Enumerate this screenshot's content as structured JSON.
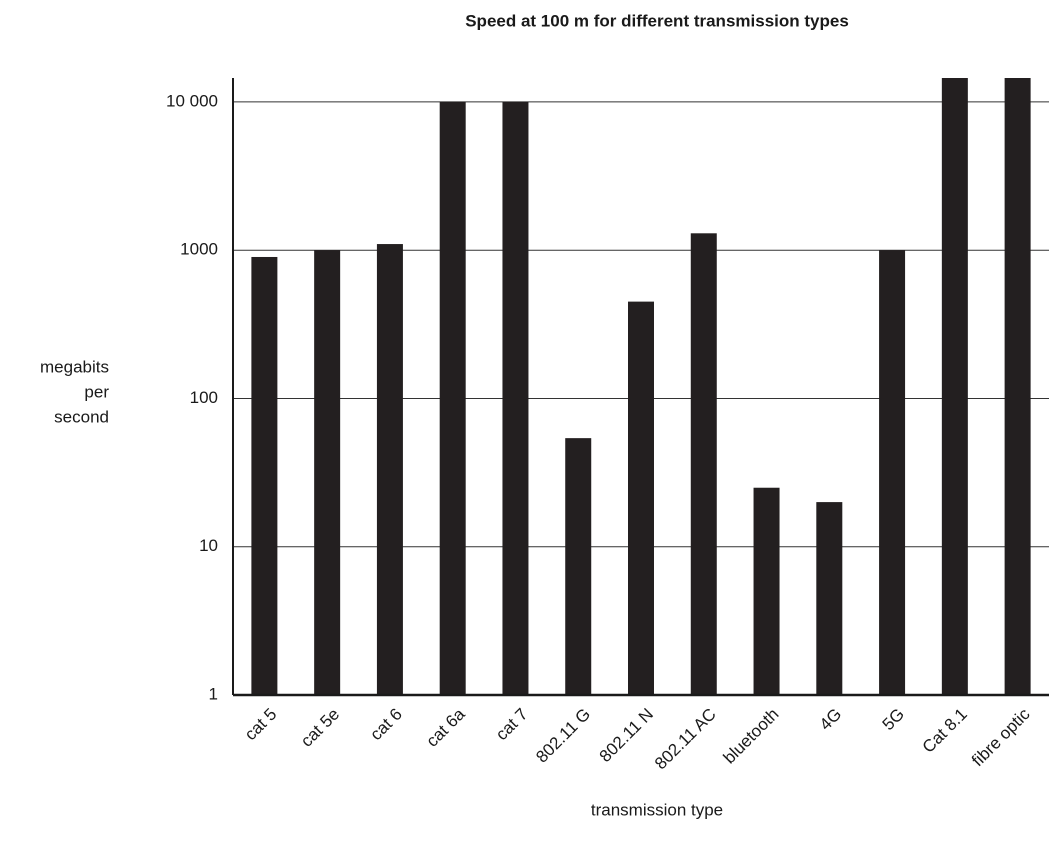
{
  "chart_data": {
    "type": "bar",
    "title": "Speed at 100 m for different transmission types",
    "x_label": "transmission type",
    "y_label": [
      "megabits",
      "per",
      "second"
    ],
    "categories": [
      "cat 5",
      "cat 5e",
      "cat 6",
      "cat 6a",
      "cat 7",
      "802.11 G",
      "802.11 N",
      "802.11 AC",
      "bluetooth",
      "4G",
      "5G",
      "Cat 8.1",
      "fibre optic"
    ],
    "values": [
      900,
      1000,
      1100,
      10000,
      10000,
      54,
      450,
      1300,
      25,
      20,
      1000,
      14500,
      14500
    ],
    "color": "#231f20",
    "log_scale": true,
    "grid": true,
    "ylim": [
      1,
      14500
    ],
    "yticks": [
      1,
      10,
      100,
      1000,
      {
        "value": 10000,
        "label": "10 000"
      }
    ]
  }
}
